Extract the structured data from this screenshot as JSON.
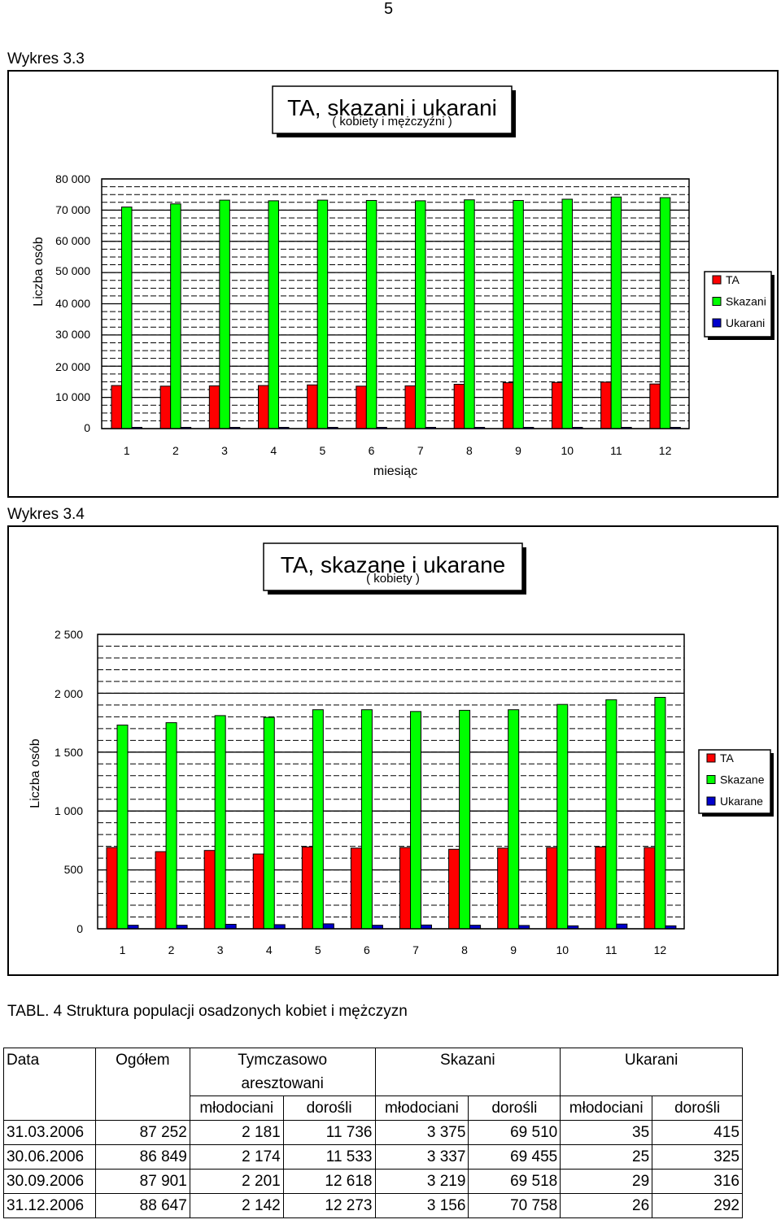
{
  "page_number": "5",
  "chart_data": [
    {
      "caption": "Wykres 3.3",
      "type": "bar",
      "title": "TA, skazani i ukarani",
      "subtitle": "( kobiety i mężczyźni )",
      "xlabel": "miesiąc",
      "ylabel": "Liczba osób",
      "ylim": [
        0,
        80000
      ],
      "yticks": [
        0,
        10000,
        20000,
        30000,
        40000,
        50000,
        60000,
        70000,
        80000
      ],
      "ytick_labels": [
        "0",
        "10 000",
        "20 000",
        "30 000",
        "40 000",
        "50 000",
        "60 000",
        "70 000",
        "80 000"
      ],
      "categories": [
        "1",
        "2",
        "3",
        "4",
        "5",
        "6",
        "7",
        "8",
        "9",
        "10",
        "11",
        "12"
      ],
      "legend_position": "right",
      "grid": true,
      "series": [
        {
          "name": "TA",
          "color": "#ff0000",
          "values": [
            13800,
            13600,
            13700,
            13800,
            14000,
            13600,
            13700,
            14200,
            14700,
            14800,
            14900,
            14300
          ]
        },
        {
          "name": "Skazani",
          "color": "#00ff00",
          "values": [
            71000,
            72000,
            73200,
            73000,
            73200,
            73100,
            73000,
            73300,
            73100,
            73500,
            74200,
            74000
          ]
        },
        {
          "name": "Ukarani",
          "color": "#0000cc",
          "values": [
            400,
            400,
            400,
            400,
            400,
            400,
            400,
            400,
            400,
            400,
            400,
            400
          ]
        }
      ]
    },
    {
      "caption": "Wykres 3.4",
      "type": "bar",
      "title": "TA, skazane i ukarane",
      "subtitle": "( kobiety )",
      "xlabel": "",
      "ylabel": "Liczba osób",
      "ylim": [
        0,
        2500
      ],
      "yticks": [
        0,
        500,
        1000,
        1500,
        2000,
        2500
      ],
      "ytick_labels": [
        "0",
        "500",
        "1 000",
        "1 500",
        "2 000",
        "2 500"
      ],
      "categories": [
        "1",
        "2",
        "3",
        "4",
        "5",
        "6",
        "7",
        "8",
        "9",
        "10",
        "11",
        "12"
      ],
      "legend_position": "right",
      "grid": true,
      "series": [
        {
          "name": "TA",
          "color": "#ff0000",
          "values": [
            690,
            655,
            665,
            635,
            695,
            685,
            690,
            675,
            685,
            690,
            695,
            690
          ]
        },
        {
          "name": "Skazane",
          "color": "#00ff00",
          "values": [
            1730,
            1750,
            1810,
            1795,
            1860,
            1860,
            1845,
            1855,
            1860,
            1905,
            1945,
            1965
          ]
        },
        {
          "name": "Ukarane",
          "color": "#0000cc",
          "values": [
            30,
            30,
            38,
            35,
            42,
            30,
            32,
            30,
            28,
            25,
            40,
            25
          ]
        }
      ]
    }
  ],
  "table": {
    "caption": "TABL. 4 Struktura populacji osadzonych kobiet i mężczyzn",
    "headers": {
      "data": "Data",
      "ogolem": "Ogółem",
      "tymczasowo_1": "Tymczasowo",
      "tymczasowo_2": "aresztowani",
      "skazani": "Skazani",
      "ukarani": "Ukarani",
      "sub": [
        "młodociani",
        "dorośli",
        "młodociani",
        "dorośli",
        "młodociani",
        "dorośli"
      ]
    },
    "rows": [
      [
        "31.03.2006",
        "87 252",
        "2 181",
        "11 736",
        "3 375",
        "69 510",
        "35",
        "415"
      ],
      [
        "30.06.2006",
        "86 849",
        "2 174",
        "11 533",
        "3 337",
        "69 455",
        "25",
        "325"
      ],
      [
        "30.09.2006",
        "87 901",
        "2 201",
        "12 618",
        "3 219",
        "69 518",
        "29",
        "316"
      ],
      [
        "31.12.2006",
        "88 647",
        "2 142",
        "12 273",
        "3 156",
        "70 758",
        "26",
        "292"
      ]
    ]
  }
}
